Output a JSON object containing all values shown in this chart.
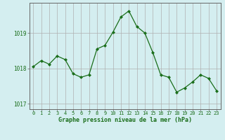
{
  "x": [
    0,
    1,
    2,
    3,
    4,
    5,
    6,
    7,
    8,
    9,
    10,
    11,
    12,
    13,
    14,
    15,
    16,
    17,
    18,
    19,
    20,
    21,
    22,
    23
  ],
  "y": [
    1018.05,
    1018.22,
    1018.12,
    1018.35,
    1018.25,
    1017.85,
    1017.75,
    1017.82,
    1018.55,
    1018.65,
    1019.02,
    1019.45,
    1019.62,
    1019.18,
    1019.0,
    1018.45,
    1017.82,
    1017.75,
    1017.33,
    1017.45,
    1017.62,
    1017.82,
    1017.72,
    1017.37
  ],
  "ylim": [
    1016.85,
    1019.85
  ],
  "yticks": [
    1017,
    1018,
    1019
  ],
  "xlabel": "Graphe pression niveau de la mer (hPa)",
  "background_color": "#d4eef0",
  "line_color": "#1a6e1a",
  "marker_color": "#1a6e1a",
  "grid_color": "#b0b0b0",
  "tick_color": "#1a6e1a",
  "xlabel_color": "#1a6e1a",
  "spine_color": "#666666"
}
